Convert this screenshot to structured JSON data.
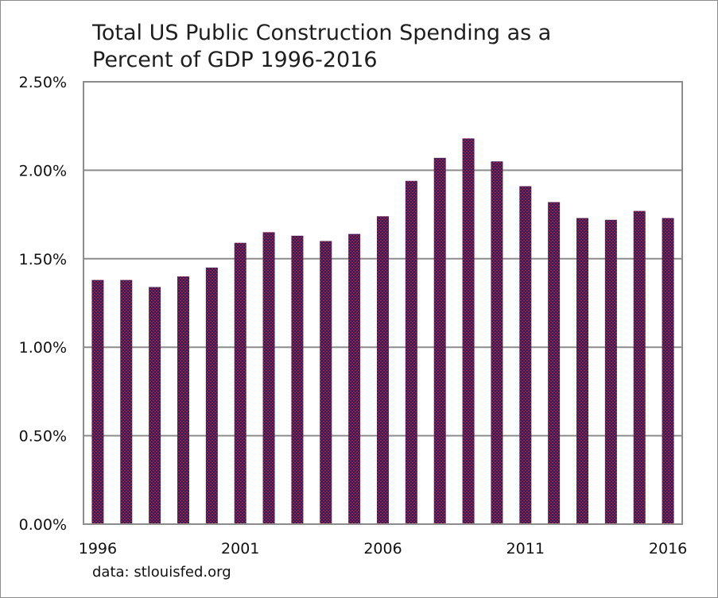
{
  "chart_data": {
    "type": "bar",
    "title_lines": [
      "Total US Public Construction Spending as a",
      "Percent of GDP 1996-2016"
    ],
    "title": "Total US Public Construction Spending as a Percent of GDP 1996-2016",
    "xlabel": "",
    "ylabel": "",
    "categories": [
      "1996",
      "1997",
      "1998",
      "1999",
      "2000",
      "2001",
      "2002",
      "2003",
      "2004",
      "2005",
      "2006",
      "2007",
      "2008",
      "2009",
      "2010",
      "2011",
      "2012",
      "2013",
      "2014",
      "2015",
      "2016"
    ],
    "values": [
      1.38,
      1.38,
      1.34,
      1.4,
      1.45,
      1.59,
      1.65,
      1.63,
      1.6,
      1.64,
      1.74,
      1.94,
      2.07,
      2.18,
      2.05,
      1.91,
      1.82,
      1.73,
      1.72,
      1.77,
      1.73
    ],
    "value_unit": "percent of GDP",
    "ylim": [
      0,
      2.5
    ],
    "yticks": [
      0,
      0.5,
      1.0,
      1.5,
      2.0,
      2.5
    ],
    "ytick_labels": [
      "0.00%",
      "0.50%",
      "1.00%",
      "1.50%",
      "2.00%",
      "2.50%"
    ],
    "xtick_labels": [
      "1996",
      "2001",
      "2006",
      "2011",
      "2016"
    ],
    "grid": "horizontal",
    "legend": "none",
    "bar_color": "#7a1f3d",
    "source_note": "data: stlouisfed.org"
  }
}
